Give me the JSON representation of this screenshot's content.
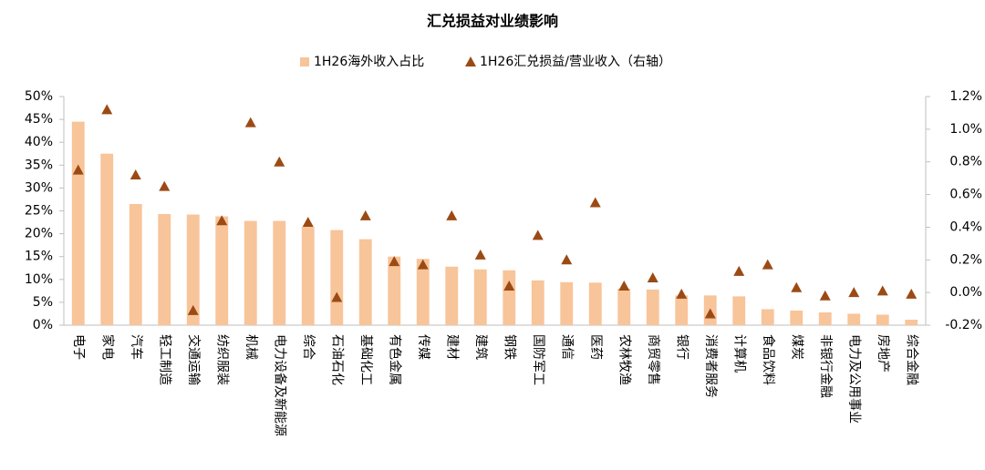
{
  "chart_data": {
    "type": "bar",
    "title": "汇兑损益对业绩影响",
    "categories": [
      "电子",
      "家电",
      "汽车",
      "轻工制造",
      "交通运输",
      "纺织服装",
      "机械",
      "电力设备及新能源",
      "综合",
      "石油石化",
      "基础化工",
      "有色金属",
      "传媒",
      "建材",
      "建筑",
      "钢铁",
      "国防军工",
      "通信",
      "医药",
      "农林牧渔",
      "商贸零售",
      "银行",
      "消费者服务",
      "计算机",
      "食品饮料",
      "煤炭",
      "非银行金融",
      "电力及公用事业",
      "房地产",
      "综合金融"
    ],
    "series": [
      {
        "name": "1H26海外收入占比",
        "type": "bar",
        "color": "#f8c49a",
        "values": [
          44.5,
          37.5,
          26.5,
          24.3,
          24.2,
          23.8,
          22.8,
          22.8,
          21.5,
          20.8,
          18.8,
          15.0,
          14.5,
          12.8,
          12.2,
          12.0,
          9.8,
          9.4,
          9.3,
          8.0,
          7.8,
          6.5,
          6.5,
          6.3,
          3.5,
          3.2,
          2.8,
          2.5,
          2.3,
          1.2
        ]
      },
      {
        "name": "1H26汇兑损益/营业收入（右轴）",
        "type": "scatter",
        "axis": "y2",
        "color": "#9c4a14",
        "values": [
          0.75,
          1.12,
          0.72,
          0.65,
          -0.11,
          0.44,
          1.04,
          0.8,
          0.43,
          -0.03,
          0.47,
          0.19,
          0.17,
          0.47,
          0.23,
          0.04,
          0.35,
          0.2,
          0.55,
          0.04,
          0.09,
          -0.01,
          -0.13,
          0.13,
          0.17,
          0.03,
          -0.02,
          0.0,
          0.01,
          -0.01
        ]
      }
    ],
    "ylim": [
      0,
      50
    ],
    "yticks": [
      {
        "value": 0,
        "label": "0%"
      },
      {
        "value": 5,
        "label": "5%"
      },
      {
        "value": 10,
        "label": "10%"
      },
      {
        "value": 15,
        "label": "15%"
      },
      {
        "value": 20,
        "label": "20%"
      },
      {
        "value": 25,
        "label": "25%"
      },
      {
        "value": 30,
        "label": "30%"
      },
      {
        "value": 35,
        "label": "35%"
      },
      {
        "value": 40,
        "label": "40%"
      },
      {
        "value": 45,
        "label": "45%"
      },
      {
        "value": 50,
        "label": "50%"
      }
    ],
    "y2lim": [
      -0.2,
      1.2
    ],
    "y2ticks": [
      {
        "value": -0.2,
        "label": "-0.2%"
      },
      {
        "value": 0,
        "label": "0.0%"
      },
      {
        "value": 0.2,
        "label": "0.2%"
      },
      {
        "value": 0.4,
        "label": "0.4%"
      },
      {
        "value": 0.6,
        "label": "0.6%"
      },
      {
        "value": 0.8,
        "label": "0.8%"
      },
      {
        "value": 1.0,
        "label": "1.0%"
      },
      {
        "value": 1.2,
        "label": "1.2%"
      }
    ]
  }
}
